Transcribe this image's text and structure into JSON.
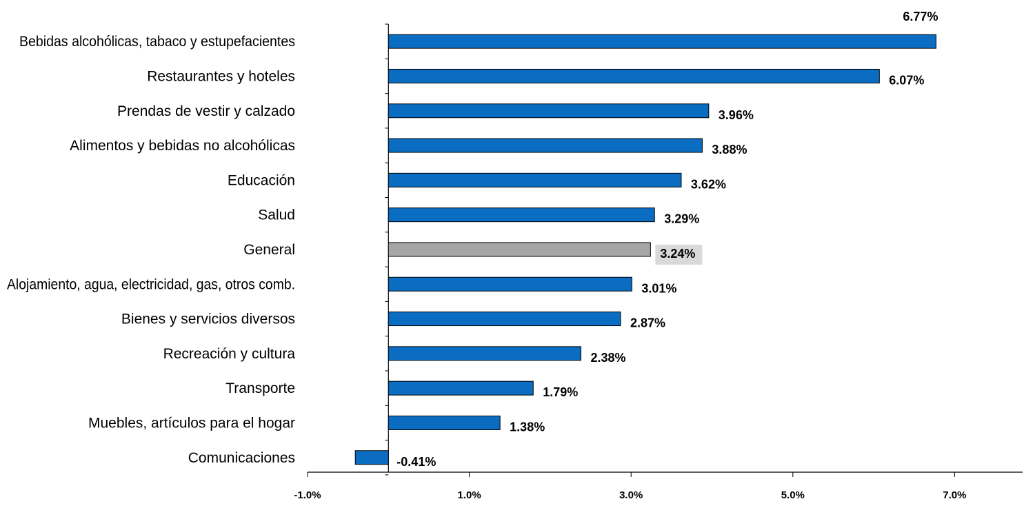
{
  "chart_data": {
    "type": "bar",
    "orientation": "horizontal",
    "title": "",
    "xlabel": "",
    "ylabel": "",
    "xlim": [
      -1.0,
      8.0
    ],
    "xticks": [
      -1.0,
      1.0,
      3.0,
      5.0,
      7.0
    ],
    "xtick_labels": [
      "-1.0%",
      "1.0%",
      "3.0%",
      "5.0%",
      "7.0%"
    ],
    "grid": false,
    "legend": "none",
    "categories": [
      "Bebidas alcohólicas, tabaco y estupefacientes",
      "Restaurantes y hoteles",
      "Prendas de vestir y calzado",
      "Alimentos y bebidas no alcohólicas",
      "Educación",
      "Salud",
      "General",
      "Alojamiento, agua, electricidad, gas, otros comb.",
      "Bienes y servicios diversos",
      "Recreación y cultura",
      "Transporte",
      "Muebles, artículos para el hogar",
      "Comunicaciones"
    ],
    "values": [
      6.77,
      6.07,
      3.96,
      3.88,
      3.62,
      3.29,
      3.24,
      3.01,
      2.87,
      2.38,
      1.79,
      1.38,
      -0.41
    ],
    "value_labels": [
      "6.77%",
      "6.07%",
      "3.96%",
      "3.88%",
      "3.62%",
      "3.29%",
      "3.24%",
      "3.01%",
      "2.87%",
      "2.38%",
      "1.79%",
      "1.38%",
      "-0.41%"
    ],
    "highlight_category": "General",
    "colors": {
      "bar": "#0A6DC2",
      "highlight_bar": "#A6A6A6",
      "highlight_label_bg": "#D9D9D9",
      "bar_outline": "#000000",
      "axis": "#000000"
    }
  }
}
